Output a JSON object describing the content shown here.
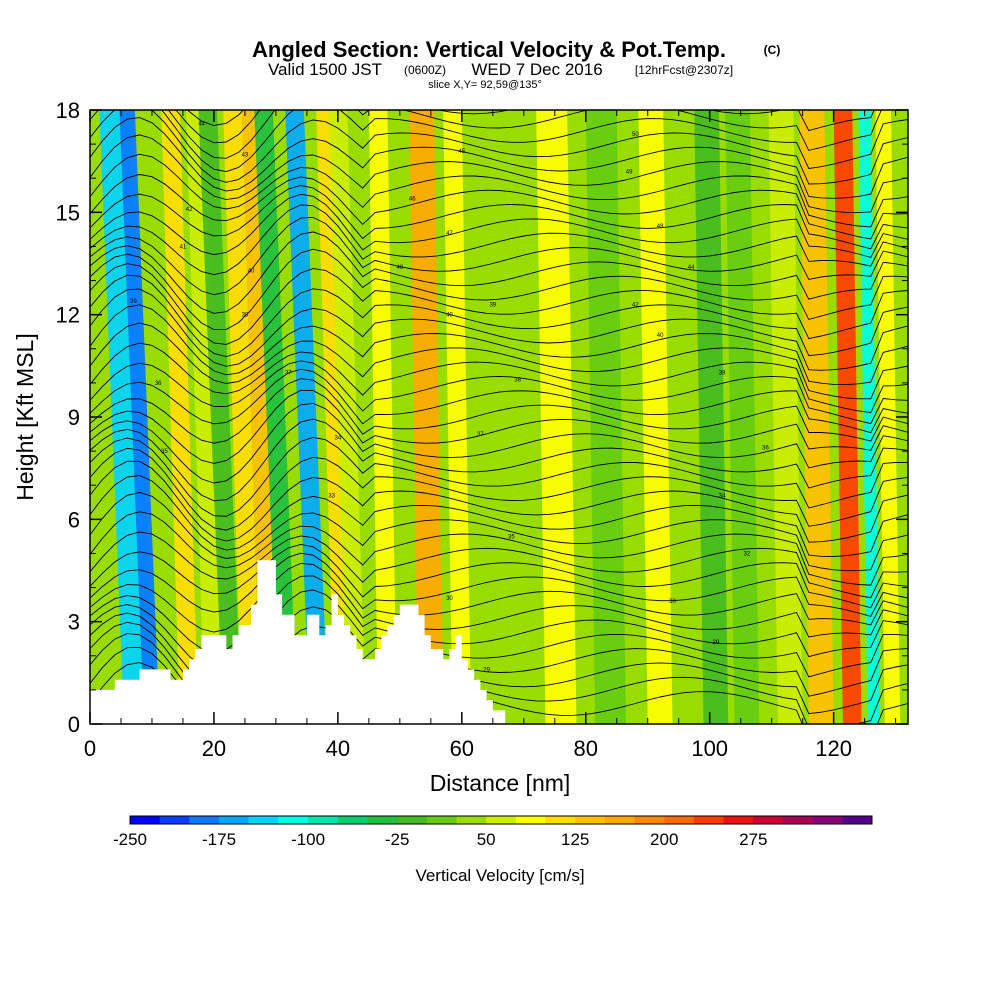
{
  "chart_data": {
    "type": "heatmap",
    "title": "Angled Section: Vertical Velocity & Pot.Temp.",
    "title_suffix": "(C)",
    "subtitle_valid": "Valid 1500 JST",
    "subtitle_utc": "(0600Z)",
    "subtitle_date": "WED 7 Dec 2016",
    "subtitle_fcst": "[12hrFcst@2307z]",
    "slice_label": "slice X,Y= 92,59@135°",
    "xlabel": "Distance [nm]",
    "ylabel": "Height [Kft MSL]",
    "xlim": [
      0,
      132
    ],
    "ylim": [
      0,
      18
    ],
    "x_ticks": [
      0,
      20,
      40,
      60,
      80,
      100,
      120
    ],
    "y_ticks": [
      0,
      3,
      6,
      9,
      12,
      15,
      18
    ],
    "colorbar": {
      "label": "Vertical Velocity [cm/s]",
      "tick_labels": [
        "-250",
        "-175",
        "-100",
        "-25",
        "50",
        "125",
        "200",
        "275"
      ],
      "colors": [
        "#0000ff",
        "#0a3cff",
        "#0a78ff",
        "#00a8ff",
        "#00d4ff",
        "#00ffe6",
        "#00e6a8",
        "#00d070",
        "#20c040",
        "#44bb22",
        "#66cc11",
        "#99dd00",
        "#ccee00",
        "#ffff00",
        "#ffdd00",
        "#ffc000",
        "#ffa800",
        "#ff8800",
        "#ff6a00",
        "#ff3c00",
        "#ee1111",
        "#cc0033",
        "#aa0055",
        "#880077",
        "#550088"
      ]
    },
    "terrain": [
      [
        0,
        1
      ],
      [
        4,
        1
      ],
      [
        4,
        1.3
      ],
      [
        8,
        1.3
      ],
      [
        8,
        1.6
      ],
      [
        13,
        1.6
      ],
      [
        13,
        1.3
      ],
      [
        15,
        1.3
      ],
      [
        15,
        1.6
      ],
      [
        16,
        1.6
      ],
      [
        16,
        1.9
      ],
      [
        17,
        1.9
      ],
      [
        17,
        2.2
      ],
      [
        18,
        2.2
      ],
      [
        18,
        2.6
      ],
      [
        22,
        2.6
      ],
      [
        22,
        2.2
      ],
      [
        23,
        2.2
      ],
      [
        23,
        2.6
      ],
      [
        24,
        2.6
      ],
      [
        24,
        2.9
      ],
      [
        26,
        2.9
      ],
      [
        26,
        3.5
      ],
      [
        27,
        3.5
      ],
      [
        27,
        4.8
      ],
      [
        30,
        4.8
      ],
      [
        30,
        3.8
      ],
      [
        31,
        3.8
      ],
      [
        31,
        3.2
      ],
      [
        33,
        3.2
      ],
      [
        33,
        2.6
      ],
      [
        35,
        2.6
      ],
      [
        35,
        3.2
      ],
      [
        37,
        3.2
      ],
      [
        37,
        2.6
      ],
      [
        38,
        2.6
      ],
      [
        38,
        2.9
      ],
      [
        39,
        2.9
      ],
      [
        39,
        3.8
      ],
      [
        40,
        3.8
      ],
      [
        40,
        3.2
      ],
      [
        41,
        3.2
      ],
      [
        41,
        2.9
      ],
      [
        42,
        2.9
      ],
      [
        42,
        2.6
      ],
      [
        43,
        2.6
      ],
      [
        43,
        2.2
      ],
      [
        44,
        2.2
      ],
      [
        44,
        1.9
      ],
      [
        46,
        1.9
      ],
      [
        46,
        2.2
      ],
      [
        47,
        2.2
      ],
      [
        47,
        2.6
      ],
      [
        48,
        2.6
      ],
      [
        48,
        2.9
      ],
      [
        49,
        2.9
      ],
      [
        49,
        3.2
      ],
      [
        50,
        3.2
      ],
      [
        50,
        3.5
      ],
      [
        53,
        3.5
      ],
      [
        53,
        3.2
      ],
      [
        54,
        3.2
      ],
      [
        54,
        2.6
      ],
      [
        55,
        2.6
      ],
      [
        55,
        2.2
      ],
      [
        57,
        2.2
      ],
      [
        57,
        1.9
      ],
      [
        58,
        1.9
      ],
      [
        58,
        2.2
      ],
      [
        59,
        2.2
      ],
      [
        59,
        2.6
      ],
      [
        60,
        2.6
      ],
      [
        60,
        1.9
      ],
      [
        61,
        1.9
      ],
      [
        61,
        1.6
      ],
      [
        62,
        1.6
      ],
      [
        62,
        1.3
      ],
      [
        63,
        1.3
      ],
      [
        63,
        1
      ],
      [
        64,
        1
      ],
      [
        64,
        0.7
      ],
      [
        65,
        0.7
      ],
      [
        65,
        0.4
      ],
      [
        67,
        0.4
      ],
      [
        67,
        0
      ],
      [
        132,
        0
      ]
    ],
    "velocity_bands": [
      {
        "x": 8,
        "width": 5,
        "value": -150
      },
      {
        "x": 10,
        "width": 2.5,
        "value": -200
      },
      {
        "x": 16,
        "width": 3,
        "value": 80
      },
      {
        "x": 20,
        "width": 3,
        "value": 30
      },
      {
        "x": 23,
        "width": 3,
        "value": -25
      },
      {
        "x": 26,
        "width": 3,
        "value": 90
      },
      {
        "x": 29,
        "width": 3,
        "value": 120
      },
      {
        "x": 32,
        "width": 3,
        "value": -50
      },
      {
        "x": 37,
        "width": 3,
        "value": -175
      },
      {
        "x": 41,
        "width": 3,
        "value": 90
      },
      {
        "x": 43,
        "width": 3,
        "value": 40
      },
      {
        "x": 48,
        "width": 3,
        "value": 70
      },
      {
        "x": 55,
        "width": 4,
        "value": 130
      },
      {
        "x": 60,
        "width": 3,
        "value": 70
      },
      {
        "x": 68,
        "width": 4,
        "value": 20
      },
      {
        "x": 76,
        "width": 5,
        "value": 50
      },
      {
        "x": 84,
        "width": 5,
        "value": -10
      },
      {
        "x": 92,
        "width": 4,
        "value": 60
      },
      {
        "x": 101,
        "width": 4,
        "value": -30
      },
      {
        "x": 106,
        "width": 4,
        "value": -10
      },
      {
        "x": 113,
        "width": 4,
        "value": 40
      },
      {
        "x": 118,
        "width": 4,
        "value": 110
      },
      {
        "x": 123,
        "width": 3,
        "value": 210
      },
      {
        "x": 126.5,
        "width": 2,
        "value": -120
      },
      {
        "x": 129.5,
        "width": 2.5,
        "value": 50
      }
    ],
    "theta_contour_labels": [
      {
        "x": 18,
        "y": 17.6,
        "text": "44"
      },
      {
        "x": 25,
        "y": 16.7,
        "text": "43"
      },
      {
        "x": 16,
        "y": 15.1,
        "text": "42"
      },
      {
        "x": 15,
        "y": 14.0,
        "text": "41"
      },
      {
        "x": 26,
        "y": 13.3,
        "text": "40"
      },
      {
        "x": 7,
        "y": 12.4,
        "text": "39"
      },
      {
        "x": 25,
        "y": 12.0,
        "text": "38"
      },
      {
        "x": 32,
        "y": 10.3,
        "text": "37"
      },
      {
        "x": 11,
        "y": 10.0,
        "text": "36"
      },
      {
        "x": 40,
        "y": 8.4,
        "text": "34"
      },
      {
        "x": 12,
        "y": 8.0,
        "text": "35"
      },
      {
        "x": 39,
        "y": 6.7,
        "text": "33"
      },
      {
        "x": 60,
        "y": 16.8,
        "text": "45"
      },
      {
        "x": 52,
        "y": 15.4,
        "text": "46"
      },
      {
        "x": 58,
        "y": 14.4,
        "text": "47"
      },
      {
        "x": 50,
        "y": 13.4,
        "text": "48"
      },
      {
        "x": 58,
        "y": 12.0,
        "text": "40"
      },
      {
        "x": 65,
        "y": 12.3,
        "text": "39"
      },
      {
        "x": 69,
        "y": 10.1,
        "text": "38"
      },
      {
        "x": 63,
        "y": 8.5,
        "text": "37"
      },
      {
        "x": 68,
        "y": 5.5,
        "text": "35"
      },
      {
        "x": 58,
        "y": 3.7,
        "text": "30"
      },
      {
        "x": 64,
        "y": 1.6,
        "text": "29"
      },
      {
        "x": 88,
        "y": 17.3,
        "text": "50"
      },
      {
        "x": 87,
        "y": 16.2,
        "text": "49"
      },
      {
        "x": 92,
        "y": 14.6,
        "text": "48"
      },
      {
        "x": 97,
        "y": 13.4,
        "text": "44"
      },
      {
        "x": 88,
        "y": 12.3,
        "text": "42"
      },
      {
        "x": 92,
        "y": 11.4,
        "text": "40"
      },
      {
        "x": 102,
        "y": 10.3,
        "text": "38"
      },
      {
        "x": 109,
        "y": 8.1,
        "text": "36"
      },
      {
        "x": 102,
        "y": 6.7,
        "text": "34"
      },
      {
        "x": 106,
        "y": 5.0,
        "text": "32"
      },
      {
        "x": 94,
        "y": 3.6,
        "text": "30"
      },
      {
        "x": 101,
        "y": 2.4,
        "text": "29"
      }
    ]
  }
}
